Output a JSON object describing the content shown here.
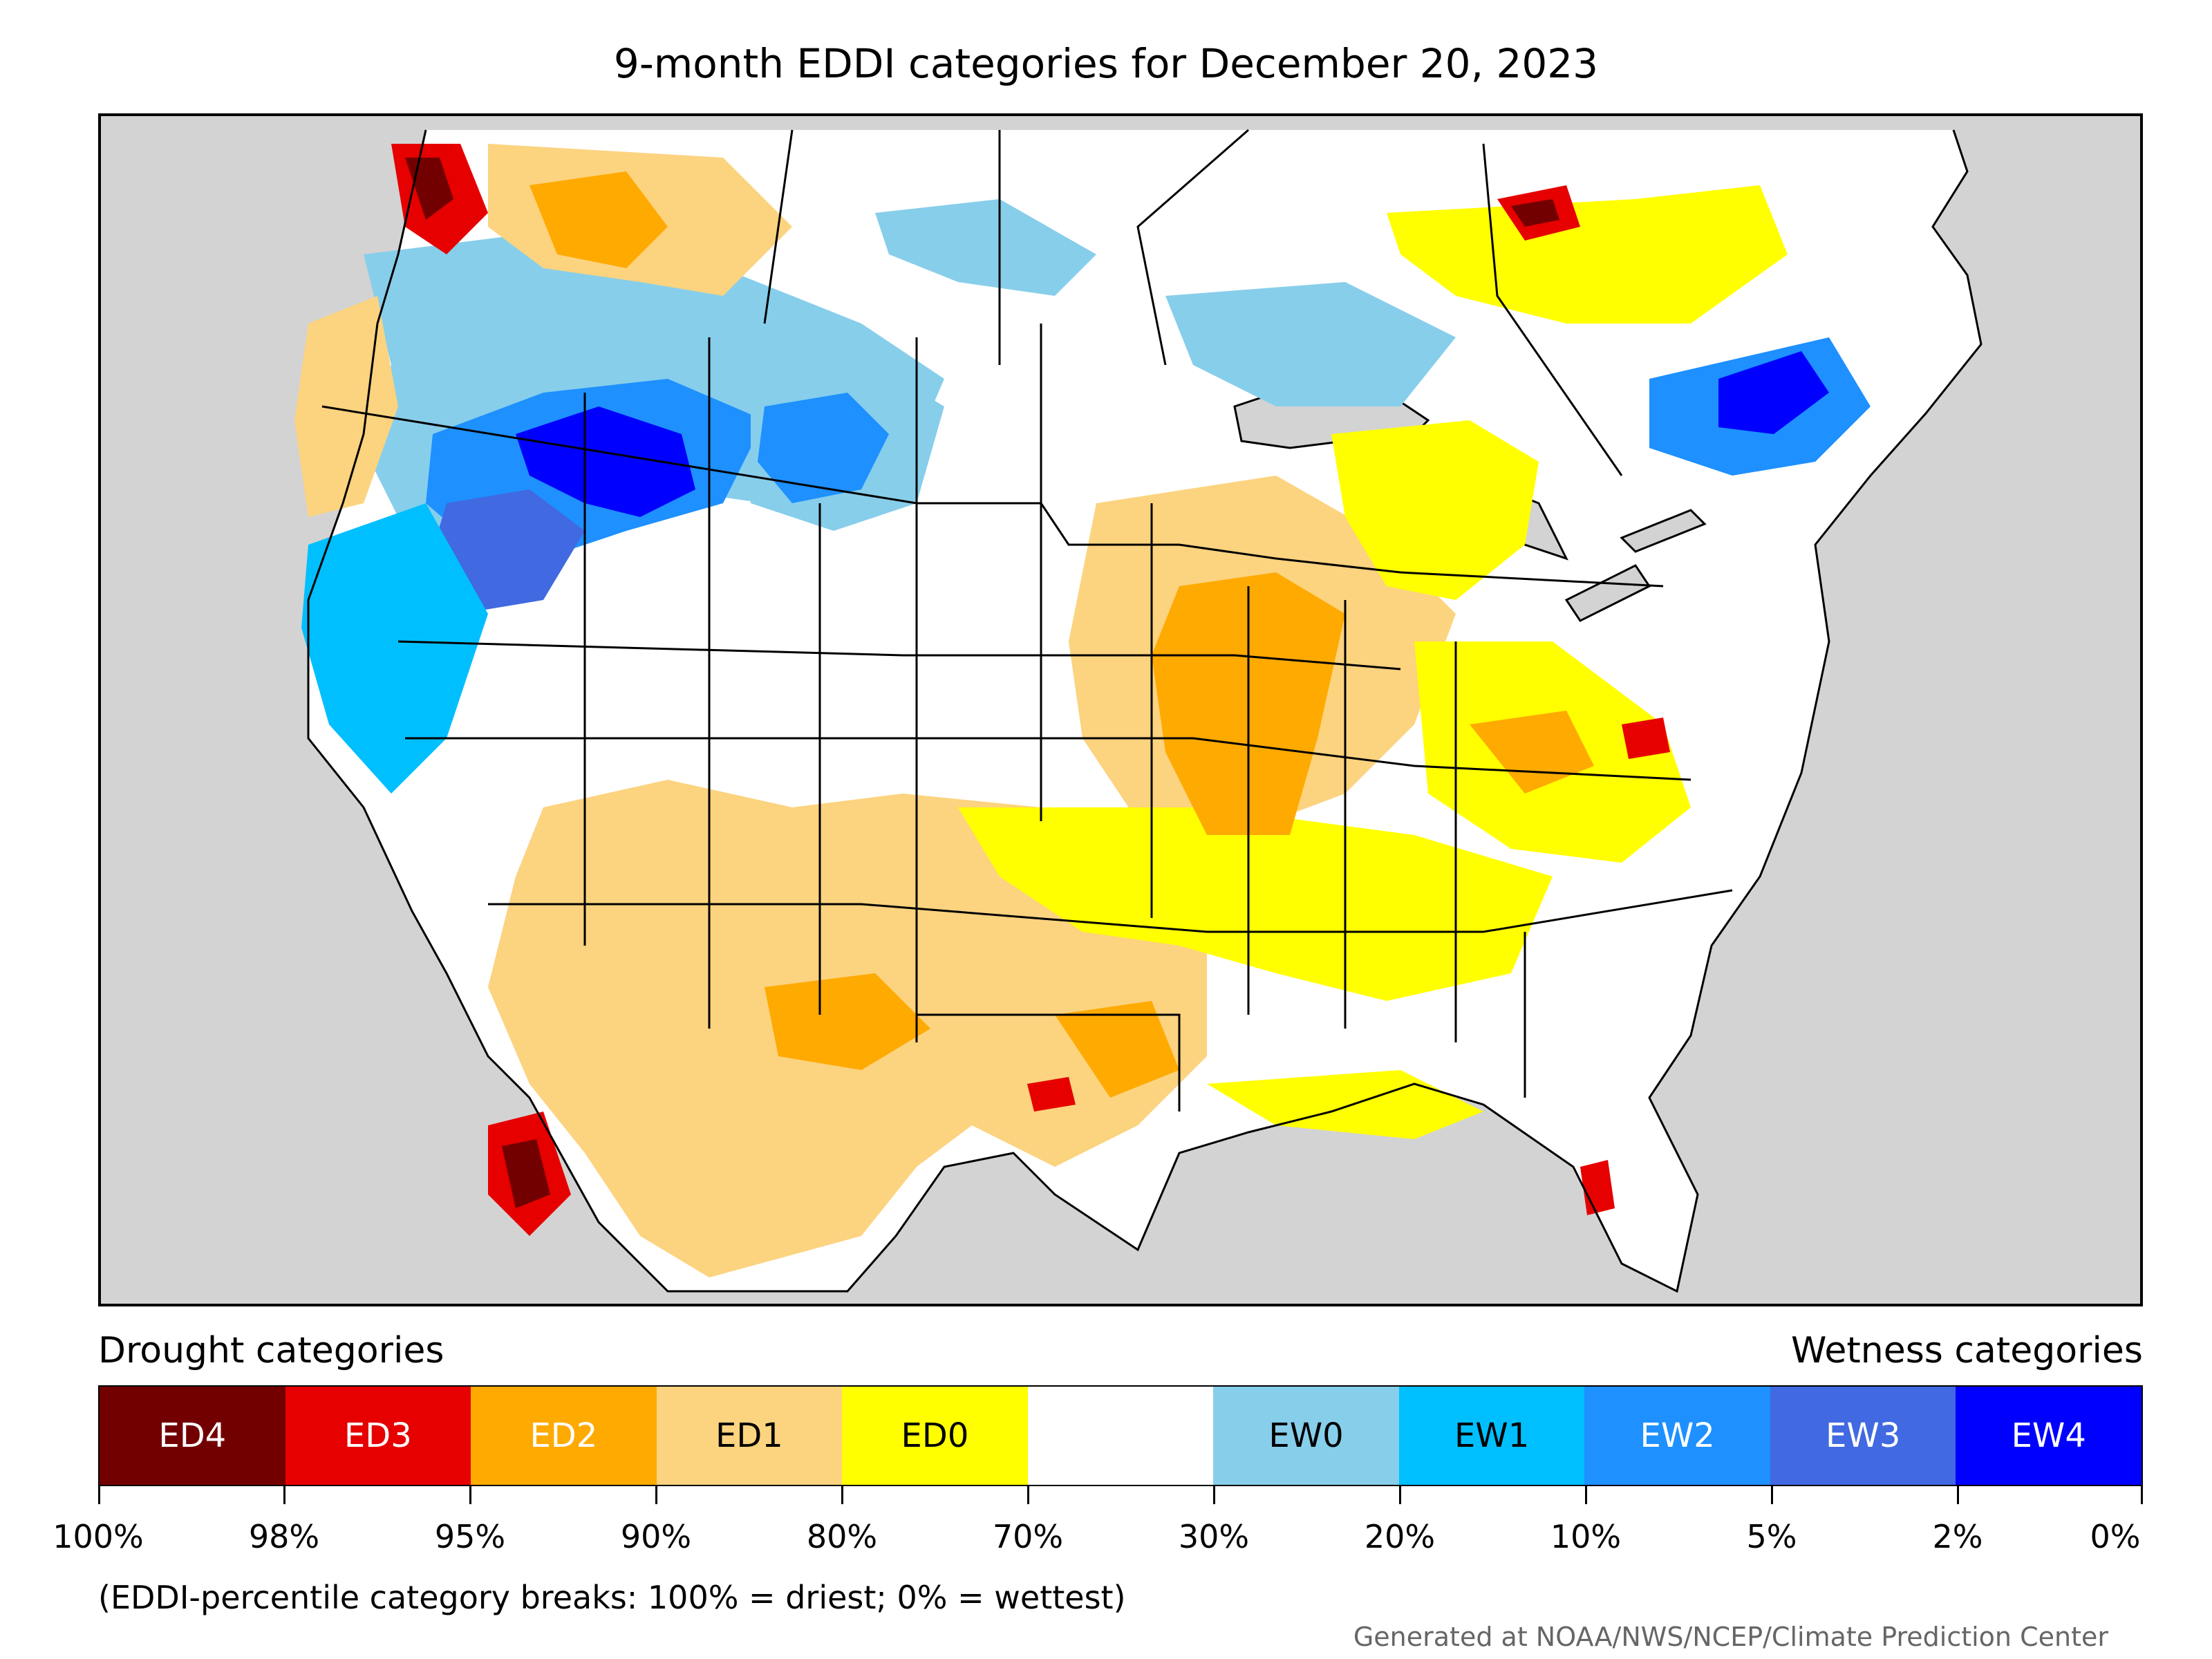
{
  "title": "9-month EDDI categories for December 20, 2023",
  "legend": {
    "drought_label": "Drought categories",
    "wetness_label": "Wetness categories",
    "categories": [
      {
        "label": "ED4",
        "color": "#730000",
        "text_color": "#ffffff"
      },
      {
        "label": "ED3",
        "color": "#e60000",
        "text_color": "#ffffff"
      },
      {
        "label": "ED2",
        "color": "#ffaa00",
        "text_color": "#ffffff"
      },
      {
        "label": "ED1",
        "color": "#fcd37f",
        "text_color": "#000000"
      },
      {
        "label": "ED0",
        "color": "#ffff00",
        "text_color": "#000000"
      },
      {
        "label": "",
        "color": "#ffffff",
        "text_color": "#000000"
      },
      {
        "label": "EW0",
        "color": "#87ceeb",
        "text_color": "#000000"
      },
      {
        "label": "EW1",
        "color": "#00bfff",
        "text_color": "#000000"
      },
      {
        "label": "EW2",
        "color": "#1e90ff",
        "text_color": "#ffffff"
      },
      {
        "label": "EW3",
        "color": "#4169e1",
        "text_color": "#ffffff"
      },
      {
        "label": "EW4",
        "color": "#0000ff",
        "text_color": "#ffffff"
      }
    ],
    "breaks": [
      "100%",
      "98%",
      "95%",
      "90%",
      "80%",
      "70%",
      "30%",
      "20%",
      "10%",
      "5%",
      "2%",
      "0%"
    ]
  },
  "footnote": "(EDDI-percentile category breaks: 100% = driest; 0% = wettest)",
  "credit": "Generated at NOAA/NWS/NCEP/Climate Prediction Center",
  "map": {
    "background_color": "#d3d3d3",
    "land_color": "#ffffff",
    "water_color": "#d3d3d3",
    "border_color": "#000000"
  }
}
